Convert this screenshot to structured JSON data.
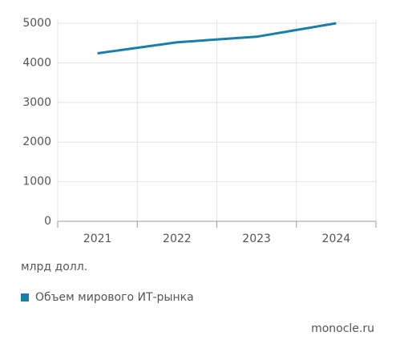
{
  "chart_data": {
    "type": "line",
    "categories": [
      "2021",
      "2022",
      "2023",
      "2024"
    ],
    "series": [
      {
        "name": "Объем мирового ИТ-рынка",
        "color": "#1a7fa8",
        "values": [
          4240,
          4520,
          4660,
          5000
        ]
      }
    ],
    "ylim": [
      0,
      5000
    ],
    "yticks": [
      0,
      1000,
      2000,
      3000,
      4000,
      5000
    ],
    "grid": true,
    "unit": "млрд долл.",
    "source": "monocle.ru",
    "legend": "bottom-left"
  }
}
